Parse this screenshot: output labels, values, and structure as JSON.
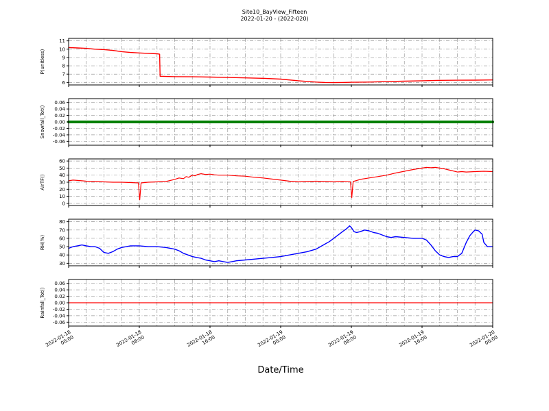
{
  "title": "Site10_BayView_Fifteen",
  "subtitle": "2022-01-20 - (2022-020)",
  "xlabel": "Date/Time",
  "axes": {
    "x_min_hours": 0,
    "x_max_hours": 48,
    "x_grid_step_hours": 2,
    "x_major_ticks_hours": [
      0,
      8,
      16,
      24,
      32,
      40,
      48
    ],
    "x_tick_labels": [
      {
        "date": "2022-01-18",
        "time": "00:00"
      },
      {
        "date": "2022-01-18",
        "time": "08:00"
      },
      {
        "date": "2022-01-18",
        "time": "16:00"
      },
      {
        "date": "2022-01-19",
        "time": "00:00"
      },
      {
        "date": "2022-01-19",
        "time": "08:00"
      },
      {
        "date": "2022-01-19",
        "time": "16:00"
      },
      {
        "date": "2022-01-20",
        "time": "00:00"
      }
    ],
    "grid_color": "#999999"
  },
  "chart_data": [
    {
      "type": "line",
      "name": "P",
      "ylabel": "P(unitless)",
      "color": "#ff0000",
      "line_width": 1.4,
      "ylim": [
        5.7,
        11.3
      ],
      "yticks": [
        6,
        7,
        8,
        9,
        10,
        11
      ],
      "ytick_labels": [
        "6",
        "7",
        "8",
        "9",
        "10",
        "11"
      ],
      "x": [
        0,
        1,
        2,
        3,
        4,
        5,
        6,
        7,
        8,
        9,
        10,
        10.3,
        10.35,
        11,
        12,
        14,
        16,
        18,
        20,
        22,
        24,
        26,
        28,
        29,
        30,
        31,
        32,
        34,
        36,
        38,
        40,
        42,
        44,
        46,
        48
      ],
      "y": [
        10.2,
        10.15,
        10.1,
        10.0,
        9.95,
        9.85,
        9.7,
        9.6,
        9.55,
        9.5,
        9.45,
        9.4,
        6.75,
        6.72,
        6.7,
        6.68,
        6.65,
        6.6,
        6.55,
        6.5,
        6.4,
        6.2,
        6.05,
        6.0,
        5.98,
        6.0,
        6.02,
        6.05,
        6.1,
        6.15,
        6.2,
        6.25,
        6.27,
        6.28,
        6.3
      ]
    },
    {
      "type": "line",
      "name": "Snowfall",
      "ylabel": "Snowfall_Tot()",
      "color": "#007f00",
      "line_width": 4,
      "ylim": [
        -0.072,
        0.072
      ],
      "yticks": [
        -0.06,
        -0.04,
        -0.02,
        0.0,
        0.02,
        0.04,
        0.06
      ],
      "ytick_labels": [
        "-0.06",
        "-0.04",
        "-0.02",
        "0.00",
        "0.02",
        "0.04",
        "0.06"
      ],
      "x": [
        0,
        48
      ],
      "y": [
        0,
        0
      ]
    },
    {
      "type": "line",
      "name": "AirTF",
      "ylabel": "AirTF()",
      "color": "#ff0000",
      "line_width": 1.2,
      "ylim": [
        -3,
        63
      ],
      "yticks": [
        0,
        10,
        20,
        30,
        40,
        50,
        60
      ],
      "ytick_labels": [
        "0",
        "10",
        "20",
        "30",
        "40",
        "50",
        "60"
      ],
      "x": [
        0,
        0.5,
        1,
        1.5,
        2,
        3,
        4,
        5,
        6,
        7,
        7.9,
        8.05,
        8.2,
        9,
        10,
        11,
        12,
        12.5,
        13,
        13.3,
        13.6,
        14,
        14.3,
        14.6,
        15,
        15.5,
        16,
        16.5,
        17,
        18,
        19,
        20,
        21,
        22,
        23,
        24,
        25,
        26,
        27,
        28,
        29,
        30,
        31,
        31.9,
        32.05,
        32.2,
        33,
        34,
        35,
        36,
        37,
        38,
        39,
        40,
        40.5,
        41,
        41.5,
        42,
        42.5,
        43,
        43.5,
        44,
        44.5,
        45,
        46,
        47,
        48
      ],
      "y": [
        32,
        33,
        32.5,
        32,
        31.5,
        31,
        30.5,
        30,
        30,
        29.5,
        29,
        5,
        29,
        30,
        30.5,
        31,
        34,
        36,
        35,
        38,
        37,
        40,
        39,
        41,
        42,
        41,
        41.5,
        40.5,
        40,
        40,
        39,
        38.5,
        37,
        36,
        34.5,
        33,
        31.5,
        30.5,
        31,
        31.5,
        31,
        30.5,
        31,
        30.5,
        8,
        31,
        34,
        36,
        38,
        40,
        43,
        45.5,
        48,
        50,
        51,
        50.5,
        51,
        50,
        49,
        47.5,
        46,
        44.5,
        45,
        44.5,
        45,
        45.5,
        45
      ]
    },
    {
      "type": "line",
      "name": "RH",
      "ylabel": "RH(%)",
      "color": "#0000ff",
      "line_width": 1.4,
      "ylim": [
        27,
        83
      ],
      "yticks": [
        30,
        40,
        50,
        60,
        70,
        80
      ],
      "ytick_labels": [
        "30",
        "40",
        "50",
        "60",
        "70",
        "80"
      ],
      "x": [
        0,
        0.5,
        1,
        1.5,
        2,
        2.5,
        3,
        3.5,
        4,
        4.5,
        5,
        5.5,
        6,
        7,
        8,
        9,
        10,
        11,
        12,
        12.5,
        13,
        13.5,
        14,
        14.5,
        15,
        15.5,
        16,
        16.5,
        17,
        17.5,
        18,
        18.5,
        19,
        20,
        21,
        22,
        23,
        24,
        25,
        26,
        27,
        28,
        28.5,
        29,
        29.5,
        30,
        30.5,
        31,
        31.5,
        31.8,
        32,
        32.3,
        32.6,
        33,
        33.5,
        34,
        34.5,
        35,
        35.5,
        36,
        36.5,
        37,
        38,
        39,
        40,
        40.5,
        41,
        41.5,
        42,
        42.5,
        43,
        43.5,
        44,
        44.5,
        45,
        45.4,
        45.8,
        46,
        46.4,
        46.8,
        47,
        47.4,
        48
      ],
      "y": [
        48,
        50,
        51,
        52,
        51,
        50,
        50,
        48,
        43,
        42,
        44,
        47,
        49,
        51,
        51,
        50,
        50,
        49,
        47,
        45,
        42,
        40,
        38,
        37,
        36,
        34,
        33,
        32,
        33,
        32,
        31,
        32,
        33,
        34,
        35,
        36,
        37,
        38,
        40,
        42,
        44,
        47,
        50,
        53,
        56,
        60,
        64,
        68,
        72,
        75,
        73,
        68,
        67,
        68,
        70,
        69,
        67,
        66,
        64,
        62,
        61,
        62,
        61,
        60,
        60,
        58,
        52,
        45,
        40,
        38,
        37,
        38,
        38,
        42,
        55,
        63,
        68,
        70,
        69,
        65,
        55,
        50,
        50
      ]
    },
    {
      "type": "line",
      "name": "Rainfall",
      "ylabel": "Rainfall_Tot()",
      "color": "#ff0000",
      "line_width": 1.2,
      "ylim": [
        -0.072,
        0.072
      ],
      "yticks": [
        -0.06,
        -0.04,
        -0.02,
        0.0,
        0.02,
        0.04,
        0.06
      ],
      "ytick_labels": [
        "-0.06",
        "-0.04",
        "-0.02",
        "0.00",
        "0.02",
        "0.04",
        "0.06"
      ],
      "x": [
        0,
        48
      ],
      "y": [
        0,
        0
      ]
    }
  ]
}
